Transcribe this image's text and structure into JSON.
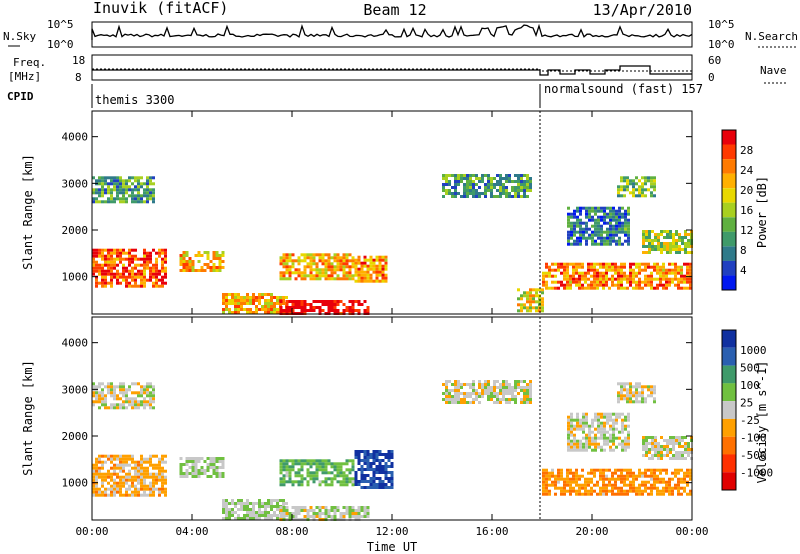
{
  "header": {
    "station": "Inuvik (fitACF)",
    "beam": "Beam 12",
    "date": "13/Apr/2010"
  },
  "noise_panel": {
    "left_label": "N.Sky",
    "right_label": "N.Search",
    "left_ticks": [
      "10^5",
      "10^0"
    ],
    "right_ticks": [
      "10^5",
      "10^0"
    ]
  },
  "freq_panel": {
    "left_label_1": "Freq.",
    "left_label_2": "[MHz]",
    "right_label": "Nave",
    "left_ticks": [
      "18",
      "8"
    ],
    "right_ticks": [
      "60",
      "0"
    ]
  },
  "cpid_panel": {
    "label": "CPID",
    "segments": [
      {
        "name": "themis 3300",
        "start": "00:00"
      },
      {
        "name": "normalsound (fast) 157",
        "start": "18:00"
      }
    ]
  },
  "chart_data": [
    {
      "type": "heatmap",
      "title": "Power",
      "xlabel": "Time UT",
      "ylabel": "Slant Range [km]",
      "x_ticks": [
        "00:00",
        "04:00",
        "08:00",
        "12:00",
        "16:00",
        "20:00",
        "00:00"
      ],
      "y_ticks": [
        1000,
        2000,
        3000,
        4000
      ],
      "ylim": [
        200,
        4550
      ],
      "colorbar": {
        "label": "Power [dB]",
        "ticks": [
          "28",
          "24",
          "20",
          "16",
          "12",
          "8",
          "4"
        ],
        "colors": [
          "#e8000b",
          "#ff3a00",
          "#ff7a00",
          "#ffb000",
          "#e8d800",
          "#a8d020",
          "#5fb040",
          "#3f9a6a",
          "#2f7a8a",
          "#2040c0",
          "#0018f0"
        ]
      },
      "regions": [
        {
          "t": [
            0.0,
            3.0
          ],
          "r": [
            800,
            1600
          ],
          "level": 24
        },
        {
          "t": [
            0.0,
            2.5
          ],
          "r": [
            2600,
            3150
          ],
          "level": 12
        },
        {
          "t": [
            3.5,
            5.2
          ],
          "r": [
            1100,
            1550
          ],
          "level": 20
        },
        {
          "t": [
            5.2,
            7.8
          ],
          "r": [
            250,
            650
          ],
          "level": 20
        },
        {
          "t": [
            7.5,
            11.0
          ],
          "r": [
            220,
            500
          ],
          "level": 28
        },
        {
          "t": [
            7.5,
            10.5
          ],
          "r": [
            950,
            1500
          ],
          "level": 20
        },
        {
          "t": [
            10.5,
            11.8
          ],
          "r": [
            900,
            1450
          ],
          "level": 22
        },
        {
          "t": [
            14.0,
            17.5
          ],
          "r": [
            2700,
            3200
          ],
          "level": 12
        },
        {
          "t": [
            17.0,
            18.0
          ],
          "r": [
            250,
            750
          ],
          "level": 18
        },
        {
          "t": [
            18.0,
            24.0
          ],
          "r": [
            750,
            1300
          ],
          "level": 22
        },
        {
          "t": [
            19.0,
            21.5
          ],
          "r": [
            1700,
            2500
          ],
          "level": 10
        },
        {
          "t": [
            21.0,
            22.5
          ],
          "r": [
            2700,
            3150
          ],
          "level": 14
        },
        {
          "t": [
            22.0,
            24.0
          ],
          "r": [
            1500,
            2000
          ],
          "level": 16
        }
      ]
    },
    {
      "type": "heatmap",
      "title": "Velocity",
      "xlabel": "Time UT",
      "ylabel": "Slant Range [km]",
      "x_ticks": [
        "00:00",
        "04:00",
        "08:00",
        "12:00",
        "16:00",
        "20:00",
        "00:00"
      ],
      "y_ticks": [
        1000,
        2000,
        3000,
        4000
      ],
      "ylim": [
        200,
        4550
      ],
      "colorbar": {
        "label": "Velocity [m s^-1]",
        "ticks": [
          "1000",
          "500",
          "100",
          "25",
          "-25",
          "-100",
          "-500",
          "-1000"
        ],
        "colors": [
          "#1030a0",
          "#2a5fb0",
          "#3f9a6a",
          "#70c040",
          "#c8c8c8",
          "#ffa000",
          "#ff7000",
          "#ff3000",
          "#e00000"
        ]
      },
      "regions": [
        {
          "t": [
            0.0,
            3.0
          ],
          "r": [
            700,
            1600
          ],
          "level": -200
        },
        {
          "t": [
            0.0,
            2.5
          ],
          "r": [
            2600,
            3150
          ],
          "level": 0
        },
        {
          "t": [
            3.5,
            5.2
          ],
          "r": [
            1100,
            1550
          ],
          "level": 100
        },
        {
          "t": [
            5.2,
            7.8
          ],
          "r": [
            250,
            650
          ],
          "level": 100
        },
        {
          "t": [
            7.5,
            11.0
          ],
          "r": [
            220,
            500
          ],
          "level": 50
        },
        {
          "t": [
            7.5,
            10.5
          ],
          "r": [
            950,
            1500
          ],
          "level": 300
        },
        {
          "t": [
            10.5,
            12.0
          ],
          "r": [
            900,
            1700
          ],
          "level": 800
        },
        {
          "t": [
            14.0,
            17.5
          ],
          "r": [
            2700,
            3200
          ],
          "level": 0
        },
        {
          "t": [
            18.0,
            24.0
          ],
          "r": [
            750,
            1300
          ],
          "level": -300
        },
        {
          "t": [
            19.0,
            21.5
          ],
          "r": [
            1700,
            2500
          ],
          "level": 0
        },
        {
          "t": [
            21.0,
            22.5
          ],
          "r": [
            2700,
            3150
          ],
          "level": 0
        },
        {
          "t": [
            22.0,
            24.0
          ],
          "r": [
            1500,
            2000
          ],
          "level": 10
        }
      ]
    }
  ]
}
